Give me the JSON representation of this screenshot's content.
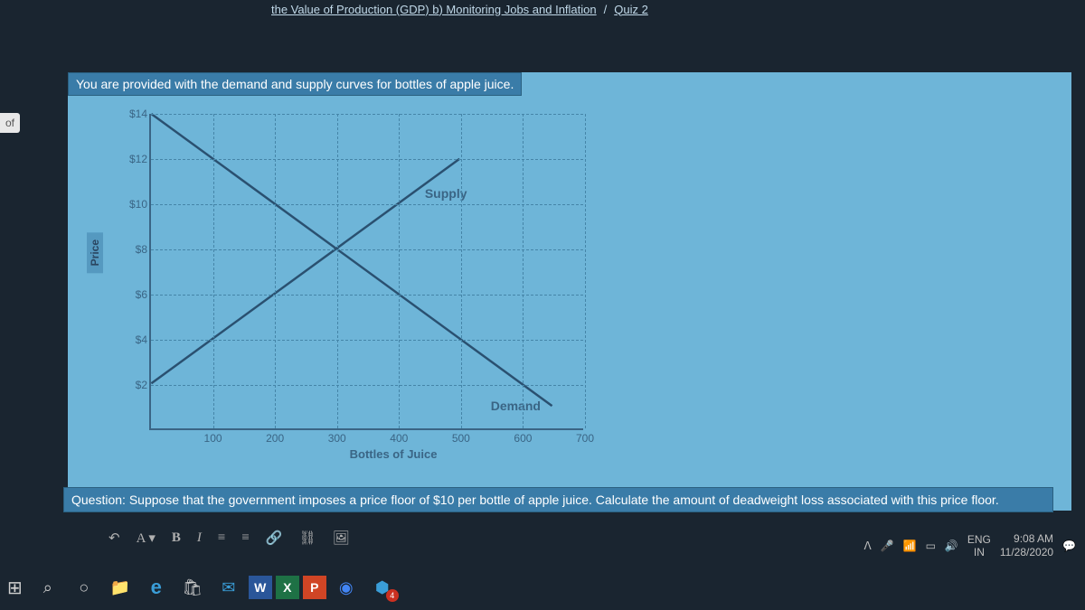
{
  "breadcrumb": {
    "part1": "the Value of Production (GDP) b) Monitoring Jobs and Inflation",
    "sep": "/",
    "part2": "Quiz 2"
  },
  "left_tab": "of",
  "instruction": "You are provided with the demand and supply curves for bottles of apple juice.",
  "chart": {
    "type": "line",
    "ylabel": "Price",
    "xlabel": "Bottles of Juice",
    "y_ticks": [
      "$14",
      "$12",
      "$10",
      "$8",
      "$6",
      "$4",
      "$2"
    ],
    "y_values": [
      14,
      12,
      10,
      8,
      6,
      4,
      2
    ],
    "y_max": 14,
    "x_ticks": [
      "100",
      "200",
      "300",
      "400",
      "500",
      "600",
      "700"
    ],
    "x_values": [
      100,
      200,
      300,
      400,
      500,
      600,
      700
    ],
    "x_max": 700,
    "supply": {
      "label": "Supply",
      "points": [
        [
          0,
          2
        ],
        [
          500,
          12
        ]
      ]
    },
    "demand": {
      "label": "Demand",
      "points": [
        [
          0,
          14
        ],
        [
          650,
          1
        ]
      ]
    },
    "line_color": "#2a5070",
    "line_width": 2.5,
    "grid_color": "#4585a8",
    "background": "#6eb5d8"
  },
  "question": "Question: Suppose that the government imposes a price floor of $10 per bottle of apple juice. Calculate the amount of deadweight loss associated with this price floor.",
  "toolbar": {
    "undo": "↶",
    "font": "A ▾",
    "bold": "B",
    "italic": "I",
    "list1": "≡",
    "list2": "≡",
    "link": "🔗",
    "unlink": "⛓",
    "image": "🖼"
  },
  "taskbar": {
    "start": "⊞",
    "search": "⌕",
    "cortana": "○",
    "explorer": "📁",
    "edge": "e",
    "store": "🛍",
    "mail": "✉",
    "word": "W",
    "excel": "X",
    "ppt": "P",
    "chrome": "◉",
    "app1": "⬢",
    "notif_badge": "4"
  },
  "tray": {
    "chevron": "ᐱ",
    "mic": "🎤",
    "wifi": "📶",
    "battery": "▭",
    "volume": "🔊",
    "lang1": "ENG",
    "lang2": "IN",
    "time": "9:08 AM",
    "date": "11/28/2020",
    "notif": "💬"
  }
}
